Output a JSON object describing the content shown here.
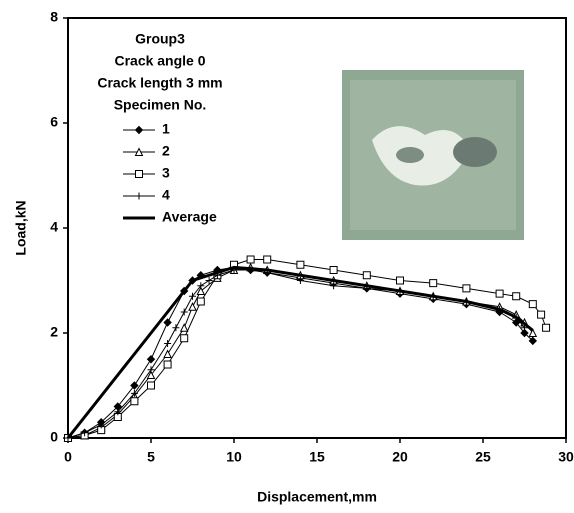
{
  "chart_data": {
    "type": "line",
    "title": "Group3",
    "annotations": [
      "Crack angle 0",
      "Crack length 3 mm"
    ],
    "legend_title": "Specimen No.",
    "x_label": "Displacement,mm",
    "y_label": "Load,kN",
    "xlim": [
      0,
      30
    ],
    "xticks": [
      0,
      5,
      10,
      15,
      20,
      25,
      30
    ],
    "ylim": [
      0,
      8
    ],
    "yticks": [
      0,
      2,
      4,
      6,
      8
    ],
    "series": [
      {
        "name": "1",
        "color": "#000000",
        "marker": "diamond",
        "x": [
          0,
          1,
          2,
          3,
          4,
          5,
          6,
          7,
          7.5,
          8,
          9,
          10,
          11,
          12,
          14,
          16,
          18,
          20,
          22,
          24,
          26,
          27,
          27.5,
          28
        ],
        "values": [
          0,
          0.1,
          0.3,
          0.6,
          1.0,
          1.5,
          2.2,
          2.8,
          3.0,
          3.1,
          3.2,
          3.25,
          3.2,
          3.15,
          3.05,
          2.95,
          2.85,
          2.75,
          2.65,
          2.55,
          2.4,
          2.2,
          2.0,
          1.85
        ]
      },
      {
        "name": "2",
        "color": "#000000",
        "marker": "triangle",
        "x": [
          0,
          1,
          2,
          3,
          4,
          5,
          6,
          7,
          7.5,
          8,
          9,
          10,
          11,
          12,
          14,
          16,
          18,
          20,
          22,
          24,
          26,
          27,
          27.5,
          28
        ],
        "values": [
          0,
          0.05,
          0.2,
          0.45,
          0.8,
          1.2,
          1.6,
          2.1,
          2.5,
          2.8,
          3.05,
          3.2,
          3.25,
          3.2,
          3.1,
          3.0,
          2.9,
          2.8,
          2.7,
          2.6,
          2.5,
          2.35,
          2.2,
          2.0
        ]
      },
      {
        "name": "3",
        "color": "#000000",
        "marker": "square",
        "x": [
          0,
          1,
          2,
          3,
          4,
          5,
          6,
          7,
          8,
          9,
          10,
          11,
          12,
          14,
          16,
          18,
          20,
          22,
          24,
          26,
          27,
          28,
          28.5,
          28.8
        ],
        "values": [
          0,
          0.05,
          0.15,
          0.4,
          0.7,
          1.0,
          1.4,
          1.9,
          2.6,
          3.1,
          3.3,
          3.4,
          3.4,
          3.3,
          3.2,
          3.1,
          3.0,
          2.95,
          2.85,
          2.75,
          2.7,
          2.55,
          2.35,
          2.1
        ]
      },
      {
        "name": "4",
        "color": "#000000",
        "marker": "plus",
        "x": [
          0,
          1,
          2,
          3,
          4,
          5,
          6,
          6.5,
          7,
          7.5,
          8,
          8.5,
          9,
          10,
          11,
          12,
          14,
          16,
          18,
          20,
          22,
          24,
          26,
          27,
          27.5
        ],
        "values": [
          0,
          0.1,
          0.25,
          0.5,
          0.85,
          1.3,
          1.8,
          2.1,
          2.4,
          2.7,
          2.9,
          3.0,
          3.1,
          3.2,
          3.2,
          3.15,
          3.0,
          2.9,
          2.85,
          2.8,
          2.7,
          2.6,
          2.45,
          2.3,
          2.1
        ]
      },
      {
        "name": "Average",
        "color": "#000000",
        "linewidth": 3,
        "x": [
          0,
          7.5,
          10,
          12,
          16,
          20,
          24,
          26,
          27,
          28
        ],
        "values": [
          0,
          3.0,
          3.25,
          3.2,
          3.0,
          2.8,
          2.6,
          2.45,
          2.3,
          2.05
        ]
      }
    ]
  }
}
